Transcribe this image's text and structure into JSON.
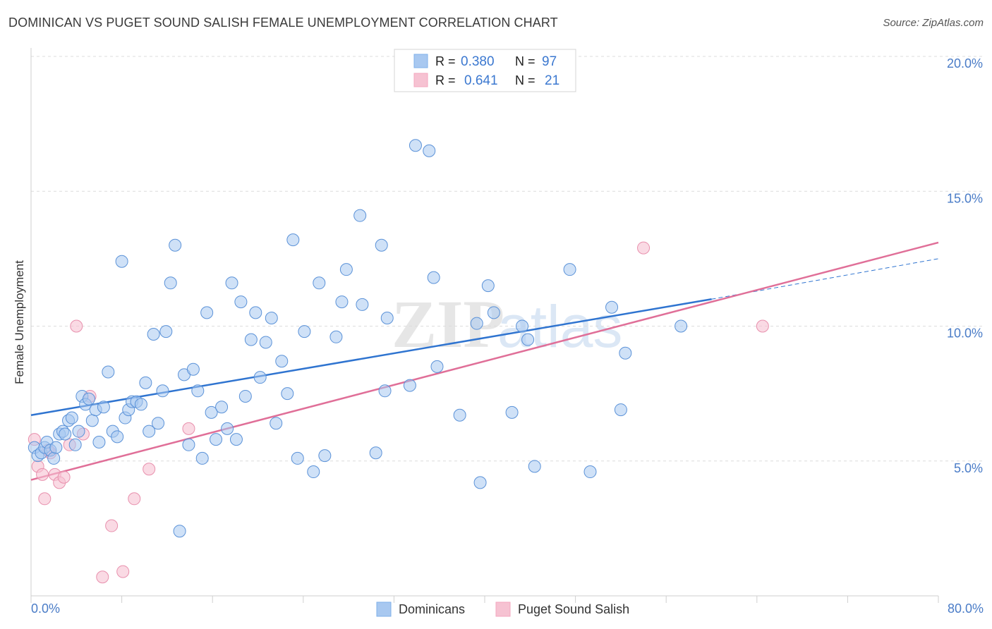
{
  "header": {
    "title": "DOMINICAN VS PUGET SOUND SALISH FEMALE UNEMPLOYMENT CORRELATION CHART",
    "source": "Source: ZipAtlas.com"
  },
  "watermark": {
    "part1": "ZIP",
    "part2": "atlas"
  },
  "legend_top": {
    "rows": [
      {
        "r_label": "R =",
        "r_value": "0.380",
        "n_label": "N =",
        "n_value": "97",
        "color": "#7fb0ea"
      },
      {
        "r_label": "R =",
        "r_value": "0.641",
        "n_label": "N =",
        "n_value": "21",
        "color": "#f4a7bf"
      }
    ]
  },
  "legend_bottom": {
    "items": [
      {
        "label": "Dominicans",
        "color": "#7fb0ea"
      },
      {
        "label": "Puget Sound Salish",
        "color": "#f4a7bf"
      }
    ]
  },
  "colors": {
    "blue_fill": "#a8c8f0",
    "blue_stroke": "#5b92d8",
    "blue_line": "#2f74d0",
    "pink_fill": "#f6c2d2",
    "pink_stroke": "#e890ad",
    "pink_line": "#e06f98",
    "tick_text": "#4a7cc7",
    "grid": "#dcdcdc"
  },
  "chart_data": {
    "type": "scatter",
    "title": "DOMINICAN VS PUGET SOUND SALISH FEMALE UNEMPLOYMENT CORRELATION CHART",
    "xlabel": "",
    "ylabel": "Female Unemployment",
    "xlim": [
      0,
      80
    ],
    "ylim": [
      0,
      20
    ],
    "x_tick_labels": {
      "min": "0.0%",
      "max": "80.0%"
    },
    "y_ticks": [
      {
        "value": 5,
        "label": "5.0%"
      },
      {
        "value": 10,
        "label": "10.0%"
      },
      {
        "value": 15,
        "label": "15.0%"
      },
      {
        "value": 20,
        "label": "20.0%"
      }
    ],
    "grid": true,
    "legend_position": "top-center",
    "series": [
      {
        "name": "Dominicans",
        "r": 0.38,
        "n": 97,
        "trend": {
          "x": [
            0,
            60
          ],
          "y": [
            6.7,
            11.0
          ]
        },
        "trend_dashed": {
          "x": [
            60,
            80
          ],
          "y": [
            11.0,
            12.5
          ]
        },
        "points": [
          [
            0.3,
            5.5
          ],
          [
            0.6,
            5.2
          ],
          [
            0.9,
            5.3
          ],
          [
            1.2,
            5.5
          ],
          [
            1.4,
            5.7
          ],
          [
            1.7,
            5.4
          ],
          [
            2.0,
            5.1
          ],
          [
            2.2,
            5.5
          ],
          [
            2.5,
            6.0
          ],
          [
            2.8,
            6.1
          ],
          [
            3.0,
            6.0
          ],
          [
            3.3,
            6.5
          ],
          [
            3.6,
            6.6
          ],
          [
            3.9,
            5.6
          ],
          [
            4.2,
            6.1
          ],
          [
            4.5,
            7.4
          ],
          [
            4.8,
            7.1
          ],
          [
            5.1,
            7.3
          ],
          [
            5.4,
            6.5
          ],
          [
            5.7,
            6.9
          ],
          [
            6.0,
            5.7
          ],
          [
            6.4,
            7.0
          ],
          [
            6.8,
            8.3
          ],
          [
            7.2,
            6.1
          ],
          [
            7.6,
            5.9
          ],
          [
            8.0,
            12.4
          ],
          [
            8.3,
            6.6
          ],
          [
            8.6,
            6.9
          ],
          [
            8.9,
            7.2
          ],
          [
            9.3,
            7.2
          ],
          [
            9.7,
            7.1
          ],
          [
            10.1,
            7.9
          ],
          [
            10.4,
            6.1
          ],
          [
            10.8,
            9.7
          ],
          [
            11.2,
            6.4
          ],
          [
            11.6,
            7.6
          ],
          [
            11.9,
            9.8
          ],
          [
            12.3,
            11.6
          ],
          [
            12.7,
            13.0
          ],
          [
            13.1,
            2.4
          ],
          [
            13.5,
            8.2
          ],
          [
            13.9,
            5.6
          ],
          [
            14.3,
            8.4
          ],
          [
            14.7,
            7.6
          ],
          [
            15.1,
            5.1
          ],
          [
            15.5,
            10.5
          ],
          [
            15.9,
            6.8
          ],
          [
            16.3,
            5.8
          ],
          [
            16.8,
            7.0
          ],
          [
            17.3,
            6.2
          ],
          [
            17.7,
            11.6
          ],
          [
            18.1,
            5.8
          ],
          [
            18.5,
            10.9
          ],
          [
            18.9,
            7.4
          ],
          [
            19.4,
            9.5
          ],
          [
            19.8,
            10.5
          ],
          [
            20.2,
            8.1
          ],
          [
            20.7,
            9.4
          ],
          [
            21.2,
            10.3
          ],
          [
            21.6,
            6.4
          ],
          [
            22.1,
            8.7
          ],
          [
            22.6,
            7.5
          ],
          [
            23.1,
            13.2
          ],
          [
            23.5,
            5.1
          ],
          [
            24.1,
            9.8
          ],
          [
            24.9,
            4.6
          ],
          [
            25.4,
            11.6
          ],
          [
            25.9,
            5.2
          ],
          [
            26.9,
            9.6
          ],
          [
            27.4,
            10.9
          ],
          [
            27.8,
            12.1
          ],
          [
            29.0,
            14.1
          ],
          [
            29.2,
            10.8
          ],
          [
            30.4,
            5.3
          ],
          [
            30.9,
            13.0
          ],
          [
            31.2,
            7.6
          ],
          [
            31.4,
            10.3
          ],
          [
            33.4,
            7.8
          ],
          [
            33.9,
            16.7
          ],
          [
            35.1,
            16.5
          ],
          [
            35.5,
            11.8
          ],
          [
            35.8,
            8.5
          ],
          [
            37.8,
            6.7
          ],
          [
            39.3,
            10.1
          ],
          [
            39.6,
            4.2
          ],
          [
            40.3,
            11.5
          ],
          [
            40.8,
            10.5
          ],
          [
            42.4,
            6.8
          ],
          [
            43.3,
            10.0
          ],
          [
            43.8,
            9.5
          ],
          [
            44.4,
            4.8
          ],
          [
            47.5,
            12.1
          ],
          [
            49.3,
            4.6
          ],
          [
            51.2,
            10.7
          ],
          [
            52.0,
            6.9
          ],
          [
            52.4,
            9.0
          ],
          [
            57.3,
            10.0
          ]
        ]
      },
      {
        "name": "Puget Sound Salish",
        "r": 0.641,
        "n": 21,
        "trend": {
          "x": [
            0,
            80
          ],
          "y": [
            4.3,
            13.1
          ]
        },
        "points": [
          [
            0.3,
            5.8
          ],
          [
            0.6,
            4.8
          ],
          [
            1.0,
            4.5
          ],
          [
            1.2,
            3.6
          ],
          [
            1.7,
            5.3
          ],
          [
            2.1,
            4.5
          ],
          [
            2.5,
            4.2
          ],
          [
            2.9,
            4.4
          ],
          [
            3.4,
            5.6
          ],
          [
            4.0,
            10.0
          ],
          [
            4.6,
            6.0
          ],
          [
            5.2,
            7.4
          ],
          [
            6.3,
            0.7
          ],
          [
            7.1,
            2.6
          ],
          [
            8.1,
            0.9
          ],
          [
            9.1,
            3.6
          ],
          [
            10.4,
            4.7
          ],
          [
            13.9,
            6.2
          ],
          [
            54.0,
            12.9
          ],
          [
            64.5,
            10.0
          ],
          [
            1.5,
            5.4
          ]
        ]
      }
    ]
  }
}
